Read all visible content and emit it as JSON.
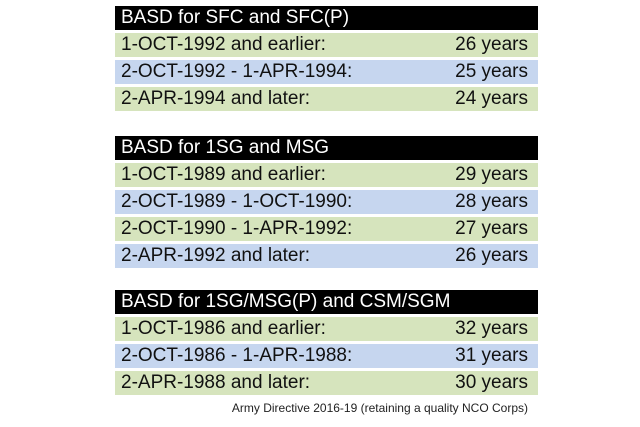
{
  "colors": {
    "header_bg": "#000000",
    "header_text": "#ffffff",
    "row_green": "#d6e4bd",
    "row_blue": "#c6d6ef"
  },
  "tables": [
    {
      "title": "BASD for SFC and SFC(P)",
      "rows": [
        {
          "period": "1-OCT-1992 and earlier:",
          "years": "26 years"
        },
        {
          "period": "2-OCT-1992 - 1-APR-1994:",
          "years": "25 years"
        },
        {
          "period": "2-APR-1994 and later:",
          "years": "24 years"
        }
      ]
    },
    {
      "title": "BASD for 1SG and MSG",
      "rows": [
        {
          "period": "1-OCT-1989 and earlier:",
          "years": "29 years"
        },
        {
          "period": "2-OCT-1989 - 1-OCT-1990:",
          "years": "28 years"
        },
        {
          "period": "2-OCT-1990 - 1-APR-1992:",
          "years": "27 years"
        },
        {
          "period": "2-APR-1992 and later:",
          "years": "26 years"
        }
      ]
    },
    {
      "title": "BASD for 1SG/MSG(P) and CSM/SGM",
      "rows": [
        {
          "period": "1-OCT-1986 and earlier:",
          "years": "32 years"
        },
        {
          "period": "2-OCT-1986 - 1-APR-1988:",
          "years": "31 years"
        },
        {
          "period": "2-APR-1988 and later:",
          "years": "30 years"
        }
      ]
    }
  ],
  "caption": "Army Directive 2016-19 (retaining a quality NCO Corps)"
}
